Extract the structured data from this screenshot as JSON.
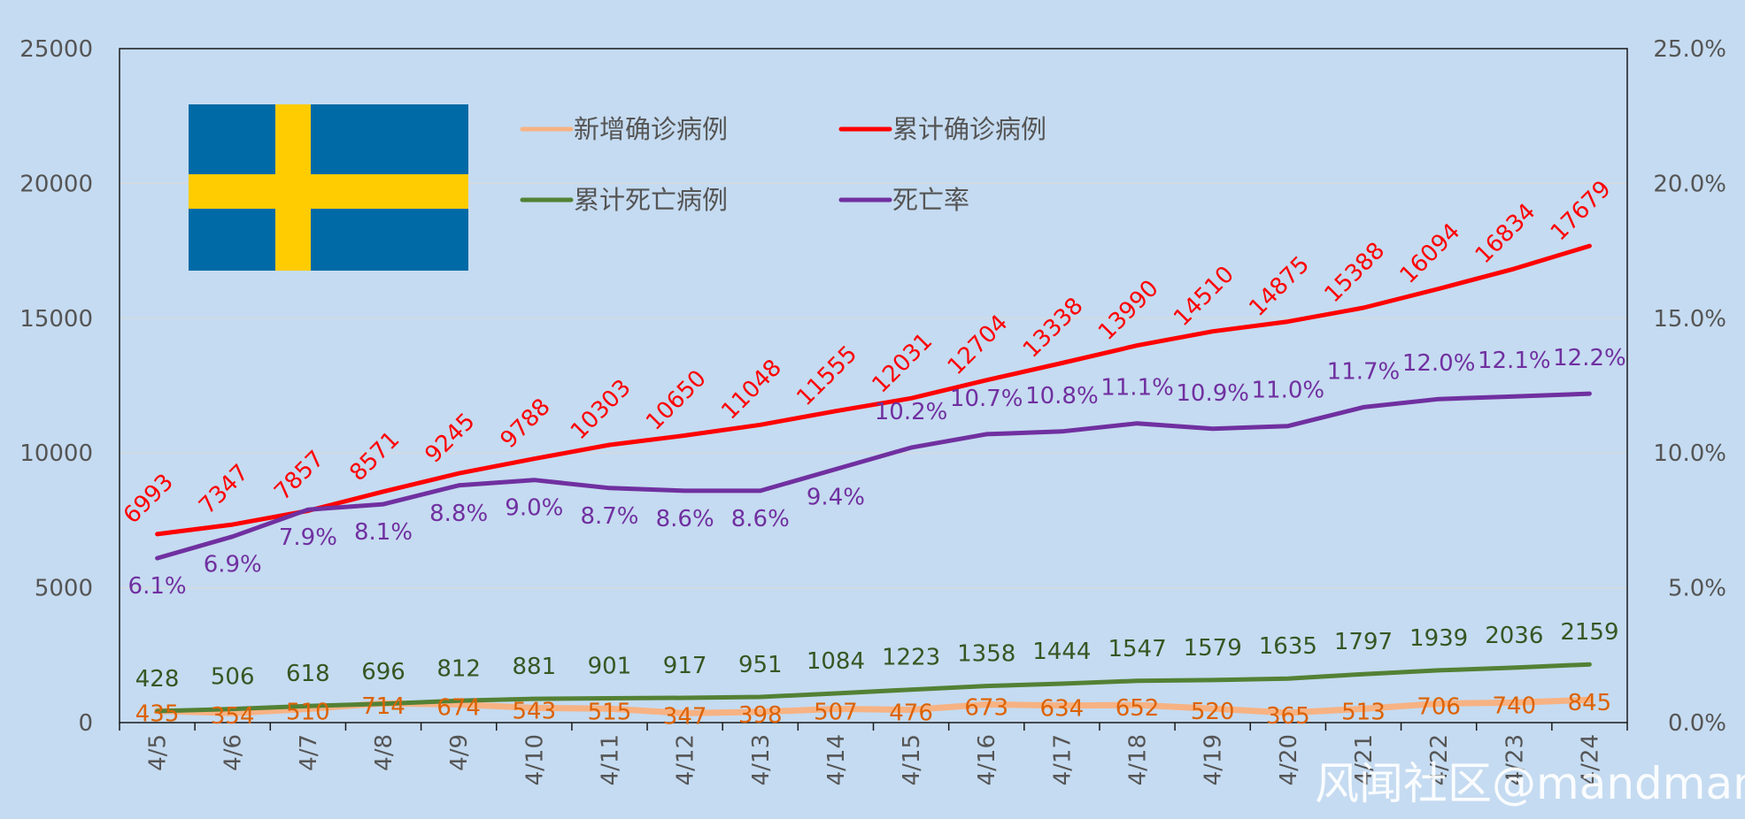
{
  "chart_data": {
    "type": "line",
    "categories": [
      "4/5",
      "4/6",
      "4/7",
      "4/8",
      "4/9",
      "4/10",
      "4/11",
      "4/12",
      "4/13",
      "4/14",
      "4/15",
      "4/16",
      "4/17",
      "4/18",
      "4/19",
      "4/20",
      "4/21",
      "4/22",
      "4/23",
      "4/24"
    ],
    "y_left": {
      "min": 0,
      "max": 25000,
      "ticks": [
        "0",
        "5000",
        "10000",
        "15000",
        "20000",
        "25000"
      ]
    },
    "y_right": {
      "min": 0,
      "max": 0.25,
      "ticks": [
        "0.0%",
        "5.0%",
        "10.0%",
        "15.0%",
        "20.0%",
        "25.0%"
      ]
    },
    "grid": true,
    "legend_position": "top",
    "series": [
      {
        "name": "新增确诊病例",
        "axis": "left",
        "color": "#f7b283",
        "label_color": "#dd6200",
        "values": [
          435,
          354,
          510,
          714,
          674,
          543,
          515,
          347,
          398,
          507,
          476,
          673,
          634,
          652,
          520,
          365,
          513,
          706,
          740,
          845
        ],
        "labels": [
          "435",
          "354",
          "510",
          "714",
          "674",
          "543",
          "515",
          "347",
          "398",
          "507",
          "476",
          "673",
          "634",
          "652",
          "520",
          "365",
          "513",
          "706",
          "740",
          "845"
        ]
      },
      {
        "name": "累计确诊病例",
        "axis": "left",
        "color": "#ff0000",
        "label_color": "#ff0000",
        "values": [
          6993,
          7347,
          7857,
          8571,
          9245,
          9788,
          10303,
          10650,
          11048,
          11555,
          12031,
          12704,
          13338,
          13990,
          14510,
          14875,
          15388,
          16094,
          16834,
          17679
        ],
        "labels": [
          "6993",
          "7347",
          "7857",
          "8571",
          "9245",
          "9788",
          "10303",
          "10650",
          "11048",
          "11555",
          "12031",
          "12704",
          "13338",
          "13990",
          "14510",
          "14875",
          "15388",
          "16094",
          "16834",
          "17679"
        ]
      },
      {
        "name": "累计死亡病例",
        "axis": "left",
        "color": "#538135",
        "label_color": "#375623",
        "values": [
          428,
          506,
          618,
          696,
          812,
          881,
          901,
          917,
          951,
          1084,
          1223,
          1358,
          1444,
          1547,
          1579,
          1635,
          1797,
          1939,
          2036,
          2159
        ],
        "labels": [
          "428",
          "506",
          "618",
          "696",
          "812",
          "881",
          "901",
          "917",
          "951",
          "1084",
          "1223",
          "1358",
          "1444",
          "1547",
          "1579",
          "1635",
          "1797",
          "1939",
          "2036",
          "2159"
        ]
      },
      {
        "name": "死亡率",
        "axis": "right",
        "color": "#7030a0",
        "label_color": "#7030a0",
        "values": [
          0.061,
          0.069,
          0.079,
          0.081,
          0.088,
          0.09,
          0.087,
          0.086,
          0.086,
          0.094,
          0.102,
          0.107,
          0.108,
          0.111,
          0.109,
          0.11,
          0.117,
          0.12,
          0.121,
          0.122
        ],
        "labels": [
          "6.1%",
          "6.9%",
          "7.9%",
          "8.1%",
          "8.8%",
          "9.0%",
          "8.7%",
          "8.6%",
          "8.6%",
          "9.4%",
          "10.2%",
          "10.7%",
          "10.8%",
          "11.1%",
          "10.9%",
          "11.0%",
          "11.7%",
          "12.0%",
          "12.1%",
          "12.2%"
        ]
      }
    ]
  },
  "flag": {
    "name": "sweden-flag",
    "blue": "#006aa7",
    "yellow": "#fecc00"
  },
  "watermark": "风闻社区@mandman"
}
